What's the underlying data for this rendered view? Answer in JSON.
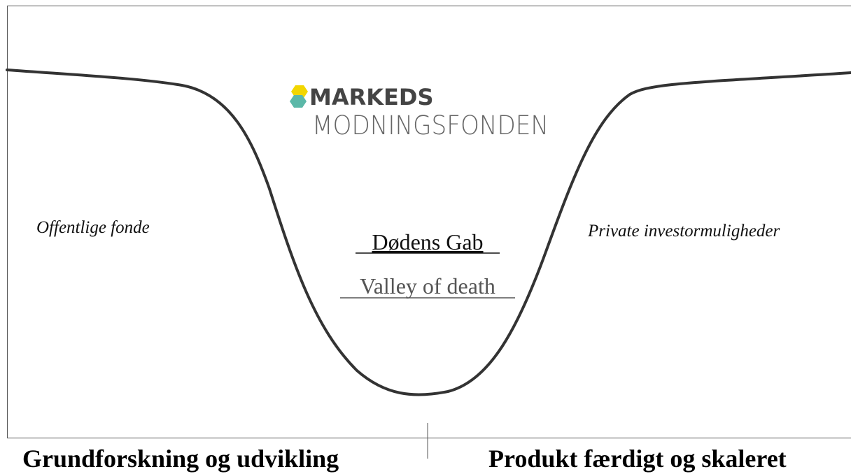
{
  "logo": {
    "line1": "MARKEDS",
    "line2": "MODNINGSFONDEN"
  },
  "labels": {
    "left": "Offentlige fonde",
    "center_da": "Dødens Gab",
    "center_en": "Valley of death",
    "right": "Private investormuligheder"
  },
  "footer": {
    "left": "Grundforskning og udvikling",
    "right": "Produkt færdigt og skaleret"
  }
}
